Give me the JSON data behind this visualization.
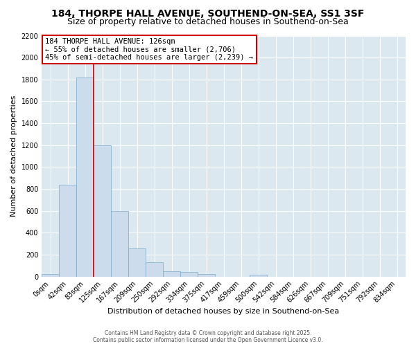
{
  "title": "184, THORPE HALL AVENUE, SOUTHEND-ON-SEA, SS1 3SF",
  "subtitle": "Size of property relative to detached houses in Southend-on-Sea",
  "xlabel": "Distribution of detached houses by size in Southend-on-Sea",
  "ylabel": "Number of detached properties",
  "bar_color": "#ccdcec",
  "bar_edge_color": "#7aaac8",
  "fig_bg_color": "#ffffff",
  "plot_bg_color": "#dce8f0",
  "grid_color": "#ffffff",
  "annotation_line_color": "#cc0000",
  "annotation_box_color": "#cc0000",
  "annotation_text": "184 THORPE HALL AVENUE: 126sqm\n← 55% of detached houses are smaller (2,706)\n45% of semi-detached houses are larger (2,239) →",
  "annotation_fontsize": 7.5,
  "footer_text": "Contains HM Land Registry data © Crown copyright and database right 2025.\nContains public sector information licensed under the Open Government Licence v3.0.",
  "categories": [
    "0sqm",
    "42sqm",
    "83sqm",
    "125sqm",
    "167sqm",
    "209sqm",
    "250sqm",
    "292sqm",
    "334sqm",
    "375sqm",
    "417sqm",
    "459sqm",
    "500sqm",
    "542sqm",
    "584sqm",
    "626sqm",
    "667sqm",
    "709sqm",
    "751sqm",
    "792sqm",
    "834sqm"
  ],
  "values": [
    22,
    840,
    1820,
    1200,
    600,
    255,
    130,
    50,
    40,
    25,
    0,
    0,
    18,
    0,
    0,
    0,
    0,
    0,
    0,
    0,
    0
  ],
  "ylim": [
    0,
    2200
  ],
  "yticks": [
    0,
    200,
    400,
    600,
    800,
    1000,
    1200,
    1400,
    1600,
    1800,
    2000,
    2200
  ],
  "vline_x": 3.5,
  "title_fontsize": 10,
  "subtitle_fontsize": 9,
  "xlabel_fontsize": 8,
  "ylabel_fontsize": 8,
  "tick_fontsize": 7,
  "footer_fontsize": 5.5
}
